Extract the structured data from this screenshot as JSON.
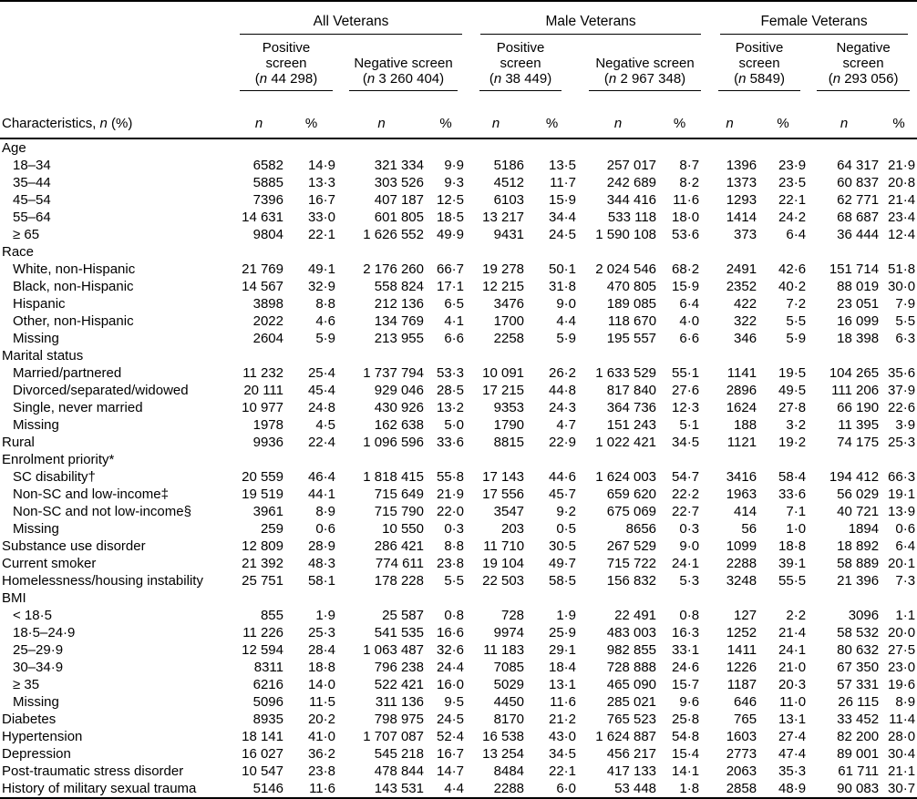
{
  "n_symbol": "n",
  "pct_symbol": "%",
  "characteristics_header": {
    "pre": "Characteristics,",
    "n": "n",
    "post": " (%)"
  },
  "groups": [
    {
      "label": "All Veterans",
      "positive": {
        "lines": [
          "Positive",
          "screen"
        ],
        "n": "44 298"
      },
      "negative": {
        "lines": [
          "Negative screen"
        ],
        "n": "3 260 404"
      }
    },
    {
      "label": "Male Veterans",
      "positive": {
        "lines": [
          "Positive",
          "screen"
        ],
        "n": "38 449"
      },
      "negative": {
        "lines": [
          "Negative screen"
        ],
        "n": "2 967 348"
      }
    },
    {
      "label": "Female Veterans",
      "positive": {
        "lines": [
          "Positive",
          "screen"
        ],
        "n": "5849"
      },
      "negative": {
        "lines": [
          "Negative",
          "screen"
        ],
        "n": "293 056"
      }
    }
  ],
  "rows": [
    {
      "label": "Age",
      "indent": 0
    },
    {
      "label": "18–34",
      "indent": 1,
      "values": [
        "6582",
        "14·9",
        "321 334",
        "9·9",
        "5186",
        "13·5",
        "257 017",
        "8·7",
        "1396",
        "23·9",
        "64 317",
        "21·9"
      ]
    },
    {
      "label": "35–44",
      "indent": 1,
      "values": [
        "5885",
        "13·3",
        "303 526",
        "9·3",
        "4512",
        "11·7",
        "242 689",
        "8·2",
        "1373",
        "23·5",
        "60 837",
        "20·8"
      ]
    },
    {
      "label": "45–54",
      "indent": 1,
      "values": [
        "7396",
        "16·7",
        "407 187",
        "12·5",
        "6103",
        "15·9",
        "344 416",
        "11·6",
        "1293",
        "22·1",
        "62 771",
        "21·4"
      ]
    },
    {
      "label": "55–64",
      "indent": 1,
      "values": [
        "14 631",
        "33·0",
        "601 805",
        "18·5",
        "13 217",
        "34·4",
        "533 118",
        "18·0",
        "1414",
        "24·2",
        "68 687",
        "23·4"
      ]
    },
    {
      "label": "≥ 65",
      "indent": 1,
      "values": [
        "9804",
        "22·1",
        "1 626 552",
        "49·9",
        "9431",
        "24·5",
        "1 590 108",
        "53·6",
        "373",
        "6·4",
        "36 444",
        "12·4"
      ]
    },
    {
      "label": "Race",
      "indent": 0
    },
    {
      "label": "White, non-Hispanic",
      "indent": 1,
      "values": [
        "21 769",
        "49·1",
        "2 176 260",
        "66·7",
        "19 278",
        "50·1",
        "2 024 546",
        "68·2",
        "2491",
        "42·6",
        "151 714",
        "51·8"
      ]
    },
    {
      "label": "Black, non-Hispanic",
      "indent": 1,
      "values": [
        "14 567",
        "32·9",
        "558 824",
        "17·1",
        "12 215",
        "31·8",
        "470 805",
        "15·9",
        "2352",
        "40·2",
        "88 019",
        "30·0"
      ]
    },
    {
      "label": "Hispanic",
      "indent": 1,
      "values": [
        "3898",
        "8·8",
        "212 136",
        "6·5",
        "3476",
        "9·0",
        "189 085",
        "6·4",
        "422",
        "7·2",
        "23 051",
        "7·9"
      ]
    },
    {
      "label": "Other, non-Hispanic",
      "indent": 1,
      "values": [
        "2022",
        "4·6",
        "134 769",
        "4·1",
        "1700",
        "4·4",
        "118 670",
        "4·0",
        "322",
        "5·5",
        "16 099",
        "5·5"
      ]
    },
    {
      "label": "Missing",
      "indent": 1,
      "values": [
        "2604",
        "5·9",
        "213 955",
        "6·6",
        "2258",
        "5·9",
        "195 557",
        "6·6",
        "346",
        "5·9",
        "18 398",
        "6·3"
      ]
    },
    {
      "label": "Marital status",
      "indent": 0
    },
    {
      "label": "Married/partnered",
      "indent": 1,
      "values": [
        "11 232",
        "25·4",
        "1 737 794",
        "53·3",
        "10 091",
        "26·2",
        "1 633 529",
        "55·1",
        "1141",
        "19·5",
        "104 265",
        "35·6"
      ]
    },
    {
      "label": "Divorced/separated/widowed",
      "indent": 1,
      "values": [
        "20 111",
        "45·4",
        "929 046",
        "28·5",
        "17 215",
        "44·8",
        "817 840",
        "27·6",
        "2896",
        "49·5",
        "111 206",
        "37·9"
      ]
    },
    {
      "label": "Single, never married",
      "indent": 1,
      "values": [
        "10 977",
        "24·8",
        "430 926",
        "13·2",
        "9353",
        "24·3",
        "364 736",
        "12·3",
        "1624",
        "27·8",
        "66 190",
        "22·6"
      ]
    },
    {
      "label": "Missing",
      "indent": 1,
      "values": [
        "1978",
        "4·5",
        "162 638",
        "5·0",
        "1790",
        "4·7",
        "151 243",
        "5·1",
        "188",
        "3·2",
        "11 395",
        "3·9"
      ]
    },
    {
      "label": "Rural",
      "indent": 0,
      "values": [
        "9936",
        "22·4",
        "1 096 596",
        "33·6",
        "8815",
        "22·9",
        "1 022 421",
        "34·5",
        "1121",
        "19·2",
        "74 175",
        "25·3"
      ]
    },
    {
      "label": "Enrolment priority*",
      "indent": 0
    },
    {
      "label": "SC disability†",
      "indent": 1,
      "values": [
        "20 559",
        "46·4",
        "1 818 415",
        "55·8",
        "17 143",
        "44·6",
        "1 624 003",
        "54·7",
        "3416",
        "58·4",
        "194 412",
        "66·3"
      ]
    },
    {
      "label": "Non-SC and low-income‡",
      "indent": 1,
      "values": [
        "19 519",
        "44·1",
        "715 649",
        "21·9",
        "17 556",
        "45·7",
        "659 620",
        "22·2",
        "1963",
        "33·6",
        "56 029",
        "19·1"
      ]
    },
    {
      "label": "Non-SC and not low-income§",
      "indent": 1,
      "values": [
        "3961",
        "8·9",
        "715 790",
        "22·0",
        "3547",
        "9·2",
        "675 069",
        "22·7",
        "414",
        "7·1",
        "40 721",
        "13·9"
      ]
    },
    {
      "label": "Missing",
      "indent": 1,
      "values": [
        "259",
        "0·6",
        "10 550",
        "0·3",
        "203",
        "0·5",
        "8656",
        "0·3",
        "56",
        "1·0",
        "1894",
        "0·6"
      ]
    },
    {
      "label": "Substance use disorder",
      "indent": 0,
      "values": [
        "12 809",
        "28·9",
        "286 421",
        "8·8",
        "11 710",
        "30·5",
        "267 529",
        "9·0",
        "1099",
        "18·8",
        "18 892",
        "6·4"
      ]
    },
    {
      "label": "Current smoker",
      "indent": 0,
      "values": [
        "21 392",
        "48·3",
        "774 611",
        "23·8",
        "19 104",
        "49·7",
        "715 722",
        "24·1",
        "2288",
        "39·1",
        "58 889",
        "20·1"
      ]
    },
    {
      "label": "Homelessness/housing instability",
      "indent": 0,
      "values": [
        "25 751",
        "58·1",
        "178 228",
        "5·5",
        "22 503",
        "58·5",
        "156 832",
        "5·3",
        "3248",
        "55·5",
        "21 396",
        "7·3"
      ]
    },
    {
      "label": "BMI",
      "indent": 0
    },
    {
      "label": "< 18·5",
      "indent": 1,
      "values": [
        "855",
        "1·9",
        "25 587",
        "0·8",
        "728",
        "1·9",
        "22 491",
        "0·8",
        "127",
        "2·2",
        "3096",
        "1·1"
      ]
    },
    {
      "label": "18·5–24·9",
      "indent": 1,
      "values": [
        "11 226",
        "25·3",
        "541 535",
        "16·6",
        "9974",
        "25·9",
        "483 003",
        "16·3",
        "1252",
        "21·4",
        "58 532",
        "20·0"
      ]
    },
    {
      "label": "25–29·9",
      "indent": 1,
      "values": [
        "12 594",
        "28·4",
        "1 063 487",
        "32·6",
        "11 183",
        "29·1",
        "982 855",
        "33·1",
        "1411",
        "24·1",
        "80 632",
        "27·5"
      ]
    },
    {
      "label": "30–34·9",
      "indent": 1,
      "values": [
        "8311",
        "18·8",
        "796 238",
        "24·4",
        "7085",
        "18·4",
        "728 888",
        "24·6",
        "1226",
        "21·0",
        "67 350",
        "23·0"
      ]
    },
    {
      "label": "≥ 35",
      "indent": 1,
      "values": [
        "6216",
        "14·0",
        "522 421",
        "16·0",
        "5029",
        "13·1",
        "465 090",
        "15·7",
        "1187",
        "20·3",
        "57 331",
        "19·6"
      ]
    },
    {
      "label": "Missing",
      "indent": 1,
      "values": [
        "5096",
        "11·5",
        "311 136",
        "9·5",
        "4450",
        "11·6",
        "285 021",
        "9·6",
        "646",
        "11·0",
        "26 115",
        "8·9"
      ]
    },
    {
      "label": "Diabetes",
      "indent": 0,
      "values": [
        "8935",
        "20·2",
        "798 975",
        "24·5",
        "8170",
        "21·2",
        "765 523",
        "25·8",
        "765",
        "13·1",
        "33 452",
        "11·4"
      ]
    },
    {
      "label": "Hypertension",
      "indent": 0,
      "values": [
        "18 141",
        "41·0",
        "1 707 087",
        "52·4",
        "16 538",
        "43·0",
        "1 624 887",
        "54·8",
        "1603",
        "27·4",
        "82 200",
        "28·0"
      ]
    },
    {
      "label": "Depression",
      "indent": 0,
      "values": [
        "16 027",
        "36·2",
        "545 218",
        "16·7",
        "13 254",
        "34·5",
        "456 217",
        "15·4",
        "2773",
        "47·4",
        "89 001",
        "30·4"
      ]
    },
    {
      "label": "Post-traumatic stress disorder",
      "indent": 0,
      "values": [
        "10 547",
        "23·8",
        "478 844",
        "14·7",
        "8484",
        "22·1",
        "417 133",
        "14·1",
        "2063",
        "35·3",
        "61 711",
        "21·1"
      ]
    },
    {
      "label": "History of military sexual trauma",
      "indent": 0,
      "values": [
        "5146",
        "11·6",
        "143 531",
        "4·4",
        "2288",
        "6·0",
        "53 448",
        "1·8",
        "2858",
        "48·9",
        "90 083",
        "30·7"
      ]
    }
  ]
}
